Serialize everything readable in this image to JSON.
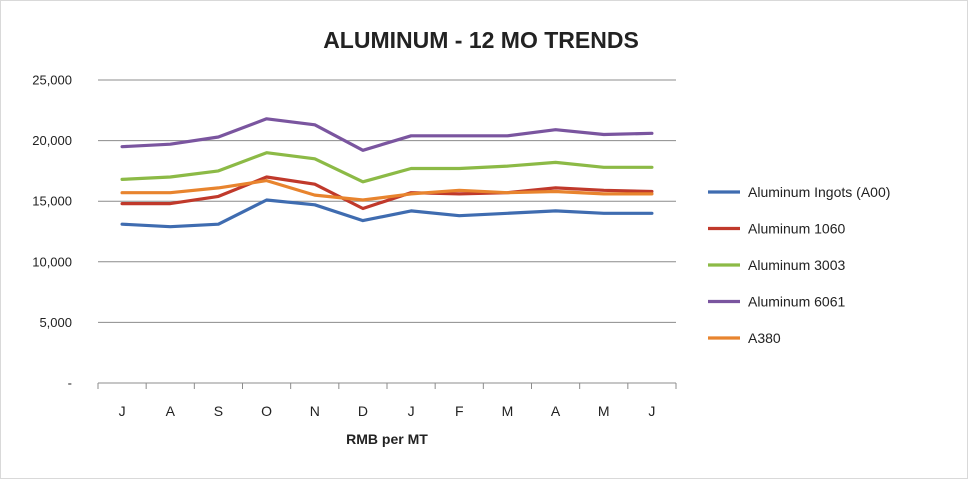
{
  "chart_data": {
    "type": "line",
    "title": "ALUMINUM - 12 MO TRENDS",
    "xlabel": "RMB per MT",
    "ylabel": "",
    "categories": [
      "J",
      "A",
      "S",
      "O",
      "N",
      "D",
      "J",
      "F",
      "M",
      "A",
      "M",
      "J"
    ],
    "ylim": [
      0,
      25000
    ],
    "y_ticks": [
      0,
      5000,
      10000,
      15000,
      20000,
      25000
    ],
    "y_tick_labels": [
      "-",
      "5,000",
      "10,000",
      "15,000",
      "20,000",
      "25,000"
    ],
    "grid": true,
    "legend": "right",
    "series": [
      {
        "name": "Aluminum Ingots (A00)",
        "color": "#3f6cb0",
        "values": [
          13100,
          12900,
          13100,
          15100,
          14700,
          13400,
          14200,
          13800,
          14000,
          14200,
          14000,
          14000
        ]
      },
      {
        "name": "Aluminum 1060",
        "color": "#c0392b",
        "values": [
          14800,
          14800,
          15400,
          17000,
          16400,
          14400,
          15700,
          15600,
          15700,
          16100,
          15900,
          15800
        ]
      },
      {
        "name": "Aluminum 3003",
        "color": "#8cba46",
        "values": [
          16800,
          17000,
          17500,
          19000,
          18500,
          16600,
          17700,
          17700,
          17900,
          18200,
          17800,
          17800
        ]
      },
      {
        "name": "Aluminum 6061",
        "color": "#7a559f",
        "values": [
          19500,
          19700,
          20300,
          21800,
          21300,
          19200,
          20400,
          20400,
          20400,
          20900,
          20500,
          20600
        ]
      },
      {
        "name": "A380",
        "color": "#e8842e",
        "values": [
          15700,
          15700,
          16100,
          16700,
          15500,
          15100,
          15600,
          15900,
          15700,
          15800,
          15600,
          15600
        ]
      }
    ]
  }
}
